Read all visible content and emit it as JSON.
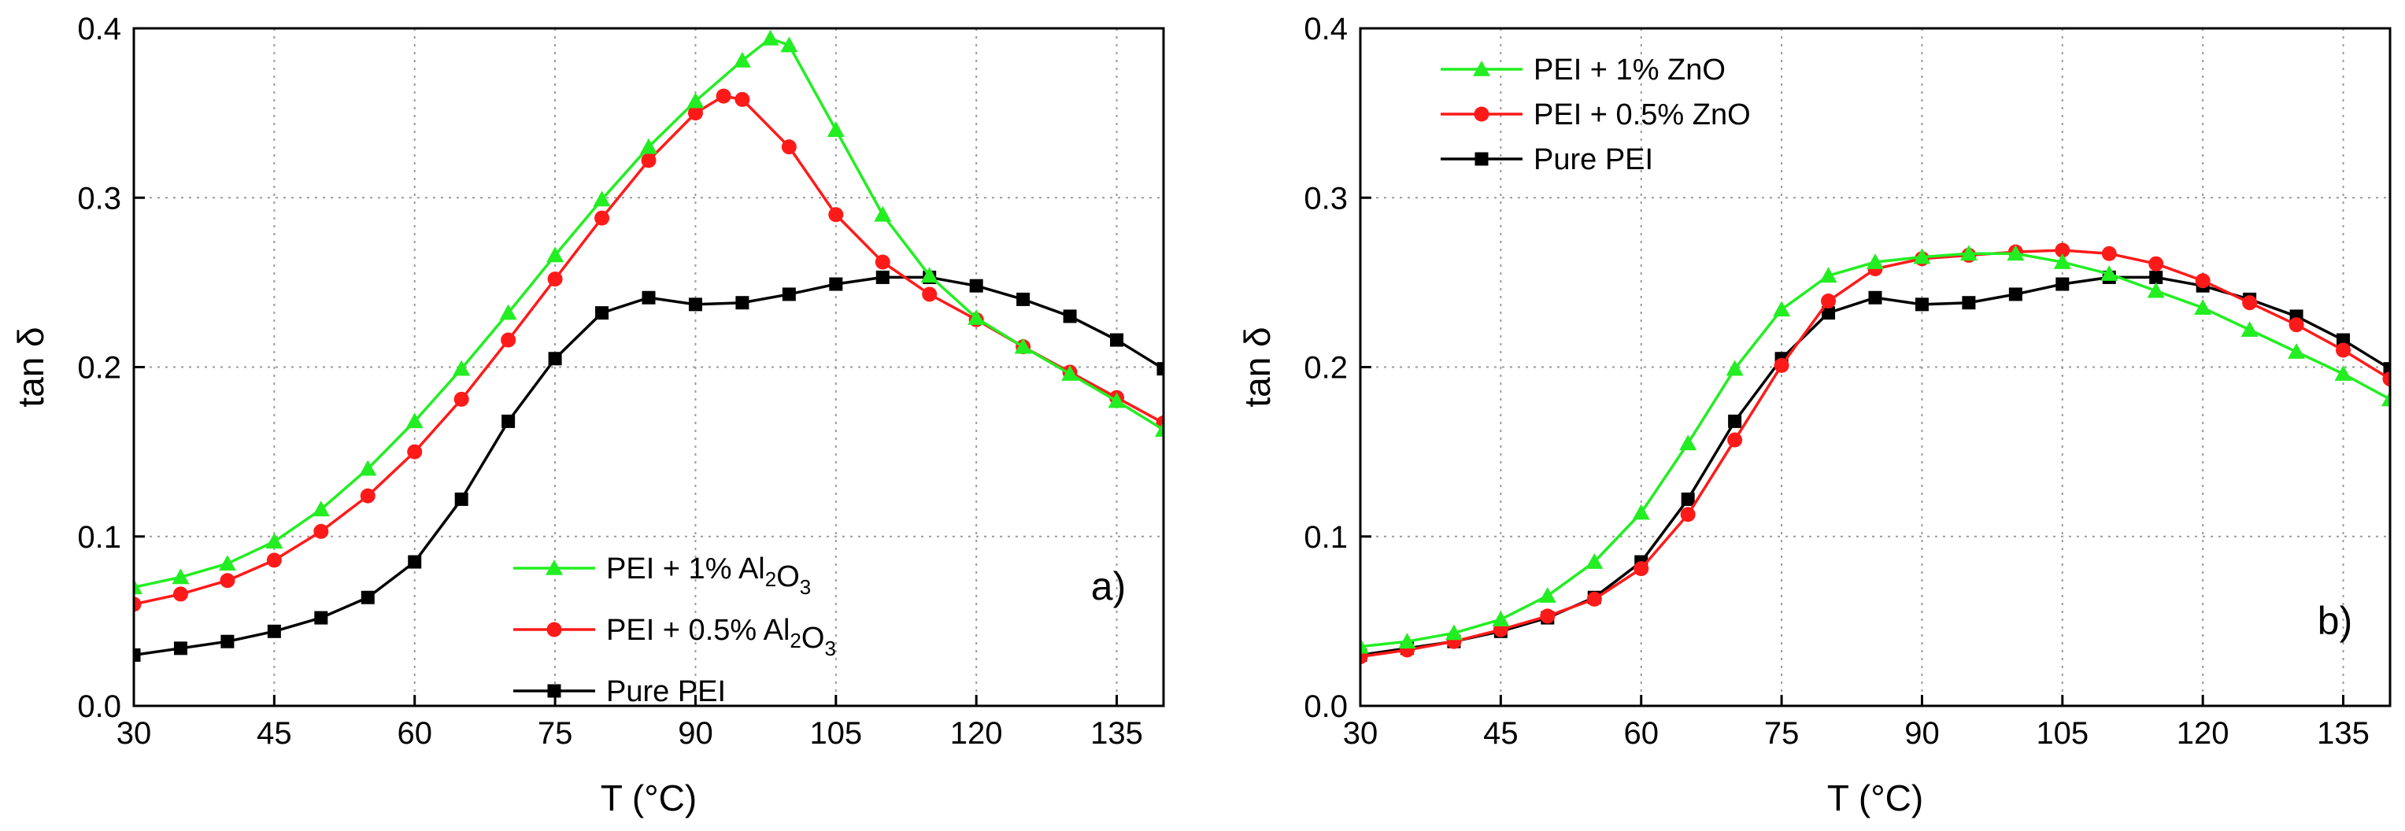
{
  "chart_data": [
    {
      "type": "line",
      "panel_label": "a)",
      "xlabel": "T (°C)",
      "ylabel": "tan δ",
      "xlim": [
        30,
        140
      ],
      "ylim": [
        0.0,
        0.4
      ],
      "xticks": [
        "30",
        "45",
        "60",
        "75",
        "90",
        "105",
        "120",
        "135"
      ],
      "yticks": [
        "0.0",
        "0.1",
        "0.2",
        "0.3",
        "0.4"
      ],
      "grid": true,
      "legend_position": "bottom-center",
      "series": [
        {
          "name": "PEI + 1% Al2O3",
          "legend": {
            "main": "PEI +  1%  Al",
            "sub1": "2",
            "mid": "O",
            "sub2": "3"
          },
          "color": "#22ee22",
          "marker": "triangle",
          "x": [
            30,
            35,
            40,
            45,
            50,
            55,
            60,
            65,
            70,
            75,
            80,
            85,
            90,
            95,
            98,
            100,
            105,
            110,
            115,
            120,
            125,
            130,
            135,
            140
          ],
          "y": [
            0.07,
            0.076,
            0.084,
            0.097,
            0.116,
            0.14,
            0.168,
            0.199,
            0.232,
            0.266,
            0.299,
            0.33,
            0.357,
            0.381,
            0.394,
            0.39,
            0.34,
            0.29,
            0.254,
            0.229,
            0.212,
            0.196,
            0.18,
            0.163
          ]
        },
        {
          "name": "PEI + 0.5% Al2O3",
          "legend": {
            "main": "PEI + 0.5% Al",
            "sub1": "2",
            "mid": "O",
            "sub2": "3"
          },
          "color": "#ff1a1a",
          "marker": "circle",
          "x": [
            30,
            35,
            40,
            45,
            50,
            55,
            60,
            65,
            70,
            75,
            80,
            85,
            90,
            93,
            95,
            100,
            105,
            110,
            115,
            120,
            125,
            130,
            135,
            140
          ],
          "y": [
            0.06,
            0.066,
            0.074,
            0.086,
            0.103,
            0.124,
            0.15,
            0.181,
            0.216,
            0.252,
            0.288,
            0.322,
            0.35,
            0.36,
            0.358,
            0.33,
            0.29,
            0.262,
            0.243,
            0.228,
            0.212,
            0.197,
            0.182,
            0.167
          ]
        },
        {
          "name": "Pure PEI",
          "legend": {
            "main": "Pure PEI",
            "sub1": "",
            "mid": "",
            "sub2": ""
          },
          "color": "#000000",
          "marker": "square",
          "x": [
            30,
            35,
            40,
            45,
            50,
            55,
            60,
            65,
            70,
            75,
            80,
            85,
            90,
            95,
            100,
            105,
            110,
            115,
            120,
            125,
            130,
            135,
            140
          ],
          "y": [
            0.03,
            0.034,
            0.038,
            0.044,
            0.052,
            0.064,
            0.085,
            0.122,
            0.168,
            0.205,
            0.232,
            0.241,
            0.237,
            0.238,
            0.243,
            0.249,
            0.253,
            0.253,
            0.248,
            0.24,
            0.23,
            0.216,
            0.199
          ]
        }
      ]
    },
    {
      "type": "line",
      "panel_label": "b)",
      "xlabel": "T (°C)",
      "ylabel": "tan δ",
      "xlim": [
        30,
        140
      ],
      "ylim": [
        0.0,
        0.4
      ],
      "xticks": [
        "30",
        "45",
        "60",
        "75",
        "90",
        "105",
        "120",
        "135"
      ],
      "yticks": [
        "0.0",
        "0.1",
        "0.2",
        "0.3",
        "0.4"
      ],
      "grid": true,
      "legend_position": "top-left",
      "series": [
        {
          "name": "PEI + 1% ZnO",
          "legend": {
            "main": "PEI +  1%  ZnO",
            "sub1": "",
            "mid": "",
            "sub2": ""
          },
          "color": "#22ee22",
          "marker": "triangle",
          "x": [
            30,
            35,
            40,
            45,
            50,
            55,
            60,
            65,
            70,
            75,
            80,
            85,
            90,
            95,
            100,
            105,
            110,
            115,
            120,
            125,
            130,
            135,
            140
          ],
          "y": [
            0.035,
            0.038,
            0.043,
            0.051,
            0.065,
            0.085,
            0.114,
            0.155,
            0.199,
            0.234,
            0.254,
            0.262,
            0.265,
            0.267,
            0.267,
            0.262,
            0.255,
            0.245,
            0.235,
            0.222,
            0.209,
            0.196,
            0.181
          ]
        },
        {
          "name": "PEI + 0.5% ZnO",
          "legend": {
            "main": "PEI + 0.5% ZnO",
            "sub1": "",
            "mid": "",
            "sub2": ""
          },
          "color": "#ff1a1a",
          "marker": "circle",
          "x": [
            30,
            35,
            40,
            45,
            50,
            55,
            60,
            65,
            70,
            75,
            80,
            85,
            90,
            95,
            100,
            105,
            110,
            115,
            120,
            125,
            130,
            135,
            140
          ],
          "y": [
            0.029,
            0.033,
            0.038,
            0.045,
            0.053,
            0.063,
            0.081,
            0.113,
            0.157,
            0.201,
            0.239,
            0.258,
            0.264,
            0.266,
            0.268,
            0.269,
            0.267,
            0.261,
            0.251,
            0.238,
            0.225,
            0.21,
            0.193
          ]
        },
        {
          "name": "Pure PEI",
          "legend": {
            "main": "Pure PEI",
            "sub1": "",
            "mid": "",
            "sub2": ""
          },
          "color": "#000000",
          "marker": "square",
          "x": [
            30,
            35,
            40,
            45,
            50,
            55,
            60,
            65,
            70,
            75,
            80,
            85,
            90,
            95,
            100,
            105,
            110,
            115,
            120,
            125,
            130,
            135,
            140
          ],
          "y": [
            0.03,
            0.034,
            0.038,
            0.044,
            0.052,
            0.064,
            0.085,
            0.122,
            0.168,
            0.205,
            0.232,
            0.241,
            0.237,
            0.238,
            0.243,
            0.249,
            0.253,
            0.253,
            0.248,
            0.24,
            0.23,
            0.216,
            0.199
          ]
        }
      ]
    }
  ]
}
